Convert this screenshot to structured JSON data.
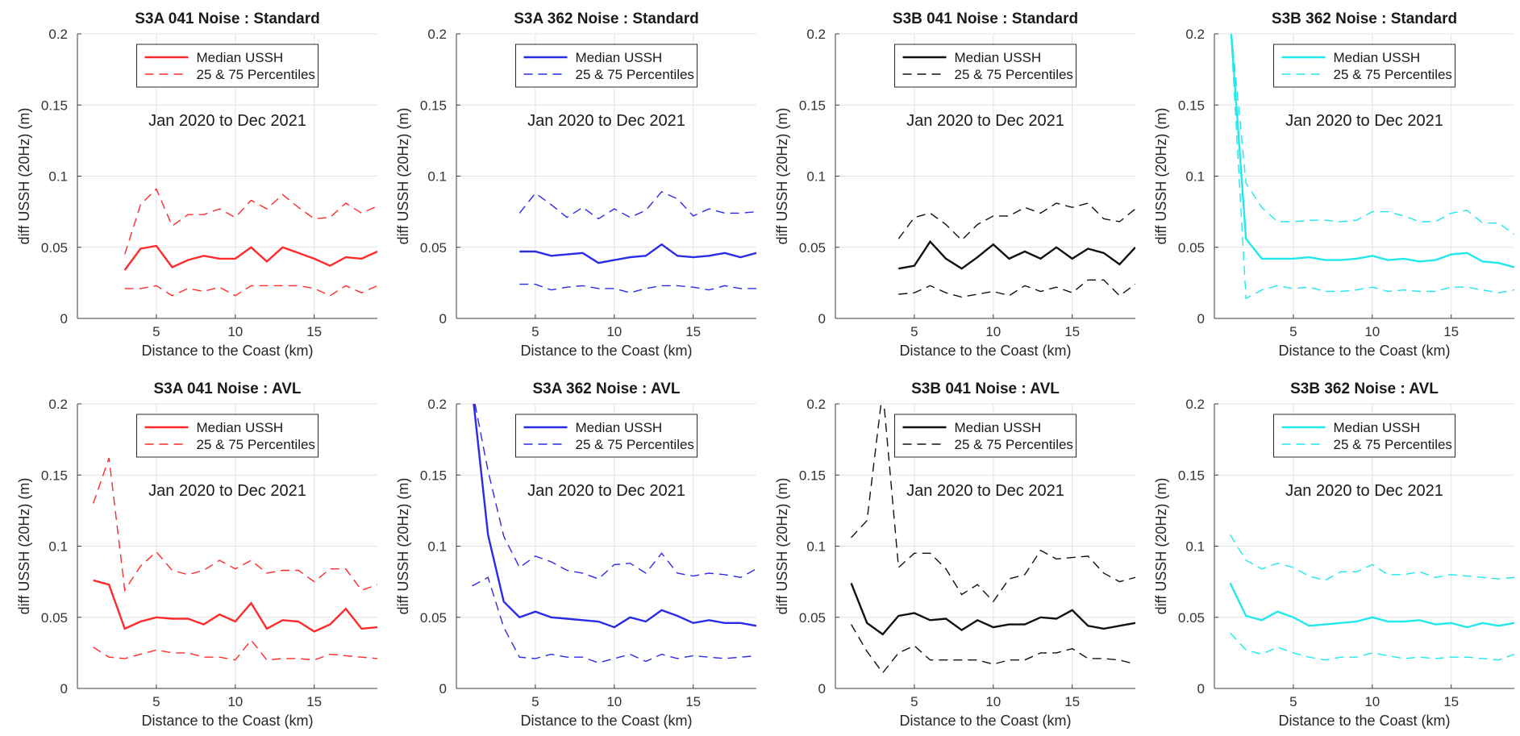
{
  "chart_data": [
    {
      "type": "line",
      "title": "S3A 041 Noise : Standard",
      "xlabel": "Distance to the Coast (km)",
      "ylabel": "diff USSH (20Hz)  (m)",
      "annotation": "Jan 2020 to Dec 2021",
      "xlim": [
        0,
        19
      ],
      "ylim": [
        0,
        0.2
      ],
      "xticks": [
        5,
        10,
        15
      ],
      "yticks": [
        0,
        0.05,
        0.1,
        0.15,
        0.2
      ],
      "ytick_labels": [
        "0",
        "0.05",
        "0.1",
        "0.15",
        "0.2"
      ],
      "grid": true,
      "legend_position": "top-center",
      "color": "#ff2a2a",
      "x": [
        3,
        4,
        5,
        6,
        7,
        8,
        9,
        10,
        11,
        12,
        13,
        14,
        15,
        16,
        17,
        18,
        19
      ],
      "series": [
        {
          "name": "Median USSH",
          "style": "solid",
          "values": [
            0.034,
            0.049,
            0.051,
            0.036,
            0.041,
            0.044,
            0.042,
            0.042,
            0.05,
            0.04,
            0.05,
            0.046,
            0.042,
            0.037,
            0.043,
            0.042,
            0.047
          ]
        },
        {
          "name": "25 & 75 Percentiles",
          "style": "dashed",
          "values": [
            0.045,
            0.08,
            0.091,
            0.065,
            0.073,
            0.073,
            0.077,
            0.071,
            0.083,
            0.077,
            0.087,
            0.078,
            0.07,
            0.071,
            0.081,
            0.074,
            0.079
          ]
        },
        {
          "style": "dashed",
          "values": [
            0.021,
            0.021,
            0.023,
            0.016,
            0.021,
            0.019,
            0.022,
            0.016,
            0.023,
            0.023,
            0.023,
            0.023,
            0.021,
            0.016,
            0.023,
            0.018,
            0.023
          ]
        }
      ]
    },
    {
      "type": "line",
      "title": "S3A 362 Noise : Standard",
      "xlabel": "Distance to the Coast (km)",
      "ylabel": "diff USSH (20Hz)  (m)",
      "annotation": "Jan 2020 to Dec 2021",
      "xlim": [
        0,
        19
      ],
      "ylim": [
        0,
        0.2
      ],
      "xticks": [
        5,
        10,
        15
      ],
      "yticks": [
        0,
        0.05,
        0.1,
        0.15,
        0.2
      ],
      "ytick_labels": [
        "0",
        "0.05",
        "0.1",
        "0.15",
        "0.2"
      ],
      "grid": true,
      "legend_position": "top-center",
      "color": "#2a2ae8",
      "x": [
        4,
        5,
        6,
        7,
        8,
        9,
        10,
        11,
        12,
        13,
        14,
        15,
        16,
        17,
        18,
        19
      ],
      "series": [
        {
          "name": "Median USSH",
          "style": "solid",
          "values": [
            0.047,
            0.047,
            0.044,
            0.045,
            0.046,
            0.039,
            0.041,
            0.043,
            0.044,
            0.052,
            0.044,
            0.043,
            0.044,
            0.046,
            0.043,
            0.046
          ]
        },
        {
          "name": "25 & 75 Percentiles",
          "style": "dashed",
          "values": [
            0.074,
            0.088,
            0.08,
            0.071,
            0.078,
            0.07,
            0.077,
            0.071,
            0.076,
            0.089,
            0.084,
            0.072,
            0.077,
            0.074,
            0.074,
            0.075
          ]
        },
        {
          "style": "dashed",
          "values": [
            0.024,
            0.024,
            0.02,
            0.022,
            0.023,
            0.021,
            0.021,
            0.018,
            0.021,
            0.023,
            0.023,
            0.022,
            0.02,
            0.023,
            0.021,
            0.021
          ]
        }
      ]
    },
    {
      "type": "line",
      "title": "S3B 041 Noise : Standard",
      "xlabel": "Distance to the Coast (km)",
      "ylabel": "diff USSH (20Hz)  (m)",
      "annotation": "Jan 2020 to Dec 2021",
      "xlim": [
        0,
        19
      ],
      "ylim": [
        0,
        0.2
      ],
      "xticks": [
        5,
        10,
        15
      ],
      "yticks": [
        0,
        0.05,
        0.1,
        0.15,
        0.2
      ],
      "ytick_labels": [
        "0",
        "0.05",
        "0.1",
        "0.15",
        "0.2"
      ],
      "grid": true,
      "legend_position": "top-center",
      "color": "#111111",
      "x": [
        4,
        5,
        6,
        7,
        8,
        9,
        10,
        11,
        12,
        13,
        14,
        15,
        16,
        17,
        18,
        19
      ],
      "series": [
        {
          "name": "Median USSH",
          "style": "solid",
          "values": [
            0.035,
            0.037,
            0.054,
            0.042,
            0.035,
            0.043,
            0.052,
            0.042,
            0.047,
            0.042,
            0.05,
            0.042,
            0.049,
            0.046,
            0.038,
            0.05
          ]
        },
        {
          "name": "25 & 75 Percentiles",
          "style": "dashed",
          "values": [
            0.056,
            0.071,
            0.074,
            0.066,
            0.055,
            0.066,
            0.072,
            0.072,
            0.078,
            0.074,
            0.081,
            0.078,
            0.081,
            0.07,
            0.068,
            0.077
          ]
        },
        {
          "style": "dashed",
          "values": [
            0.017,
            0.018,
            0.023,
            0.018,
            0.015,
            0.017,
            0.019,
            0.016,
            0.023,
            0.019,
            0.022,
            0.018,
            0.027,
            0.027,
            0.016,
            0.024
          ]
        }
      ]
    },
    {
      "type": "line",
      "title": "S3B 362 Noise : Standard",
      "xlabel": "Distance to the Coast (km)",
      "ylabel": "diff USSH (20Hz)  (m)",
      "annotation": "Jan 2020 to Dec 2021",
      "xlim": [
        0,
        19
      ],
      "ylim": [
        0,
        0.2
      ],
      "xticks": [
        5,
        10,
        15
      ],
      "yticks": [
        0,
        0.05,
        0.1,
        0.15,
        0.2
      ],
      "ytick_labels": [
        "0",
        "0.05",
        "0.1",
        "0.15",
        "0.2"
      ],
      "grid": true,
      "legend_position": "top-center",
      "color": "#21e8ec",
      "x": [
        1,
        2,
        3,
        4,
        5,
        6,
        7,
        8,
        9,
        10,
        11,
        12,
        13,
        14,
        15,
        16,
        17,
        18,
        19
      ],
      "series": [
        {
          "name": "Median USSH",
          "style": "solid",
          "values": [
            0.21,
            0.056,
            0.042,
            0.042,
            0.042,
            0.043,
            0.041,
            0.041,
            0.042,
            0.044,
            0.041,
            0.042,
            0.04,
            0.041,
            0.045,
            0.046,
            0.04,
            0.039,
            0.036
          ]
        },
        {
          "name": "25 & 75 Percentiles",
          "style": "dashed",
          "values": [
            0.21,
            0.095,
            0.078,
            0.068,
            0.068,
            0.069,
            0.069,
            0.068,
            0.069,
            0.075,
            0.075,
            0.072,
            0.068,
            0.068,
            0.074,
            0.076,
            0.067,
            0.067,
            0.059
          ]
        },
        {
          "style": "dashed",
          "values": [
            0.21,
            0.014,
            0.02,
            0.023,
            0.021,
            0.022,
            0.019,
            0.019,
            0.02,
            0.022,
            0.019,
            0.02,
            0.019,
            0.019,
            0.022,
            0.022,
            0.02,
            0.018,
            0.02
          ]
        }
      ]
    },
    {
      "type": "line",
      "title": "S3A 041 Noise : AVL",
      "xlabel": "Distance to the Coast (km)",
      "ylabel": "diff USSH (20Hz)  (m)",
      "annotation": "Jan 2020 to Dec 2021",
      "xlim": [
        0,
        19
      ],
      "ylim": [
        0,
        0.2
      ],
      "xticks": [
        5,
        10,
        15
      ],
      "yticks": [
        0,
        0.05,
        0.1,
        0.15,
        0.2
      ],
      "ytick_labels": [
        "0",
        "0.05",
        "0.1",
        "0.15",
        "0.2"
      ],
      "grid": true,
      "legend_position": "top-center",
      "color": "#ff2a2a",
      "x": [
        1,
        2,
        3,
        4,
        5,
        6,
        7,
        8,
        9,
        10,
        11,
        12,
        13,
        14,
        15,
        16,
        17,
        18,
        19
      ],
      "series": [
        {
          "name": "Median USSH",
          "style": "solid",
          "values": [
            0.076,
            0.073,
            0.042,
            0.047,
            0.05,
            0.049,
            0.049,
            0.045,
            0.052,
            0.047,
            0.06,
            0.042,
            0.048,
            0.047,
            0.04,
            0.045,
            0.056,
            0.042,
            0.043
          ]
        },
        {
          "name": "25 & 75 Percentiles",
          "style": "dashed",
          "values": [
            0.13,
            0.162,
            0.069,
            0.086,
            0.096,
            0.083,
            0.08,
            0.083,
            0.09,
            0.084,
            0.09,
            0.081,
            0.083,
            0.083,
            0.075,
            0.084,
            0.084,
            0.069,
            0.073
          ]
        },
        {
          "style": "dashed",
          "values": [
            0.029,
            0.022,
            0.021,
            0.024,
            0.027,
            0.025,
            0.025,
            0.022,
            0.022,
            0.02,
            0.034,
            0.02,
            0.021,
            0.021,
            0.02,
            0.024,
            0.023,
            0.022,
            0.021
          ]
        }
      ]
    },
    {
      "type": "line",
      "title": "S3A 362 Noise : AVL",
      "xlabel": "Distance to the Coast (km)",
      "ylabel": "diff USSH (20Hz)  (m)",
      "annotation": "Jan 2020 to Dec 2021",
      "xlim": [
        0,
        19
      ],
      "ylim": [
        0,
        0.2
      ],
      "xticks": [
        5,
        10,
        15
      ],
      "yticks": [
        0,
        0.05,
        0.1,
        0.15,
        0.2
      ],
      "ytick_labels": [
        "0",
        "0.05",
        "0.1",
        "0.15",
        "0.2"
      ],
      "grid": true,
      "legend_position": "top-center",
      "color": "#2a2ae8",
      "x": [
        1,
        2,
        3,
        4,
        5,
        6,
        7,
        8,
        9,
        10,
        11,
        12,
        13,
        14,
        15,
        16,
        17,
        18,
        19
      ],
      "series": [
        {
          "name": "Median USSH",
          "style": "solid",
          "values": [
            0.21,
            0.108,
            0.061,
            0.05,
            0.054,
            0.05,
            0.049,
            0.048,
            0.047,
            0.043,
            0.05,
            0.047,
            0.055,
            0.051,
            0.046,
            0.048,
            0.046,
            0.046,
            0.044
          ]
        },
        {
          "name": "25 & 75 Percentiles",
          "style": "dashed",
          "values": [
            0.072,
            0.078,
            0.043,
            0.022,
            0.021,
            0.024,
            0.022,
            0.022,
            0.018,
            0.021,
            0.024,
            0.019,
            0.024,
            0.021,
            0.023,
            0.022,
            0.021,
            0.022,
            0.023
          ]
        },
        {
          "style": "dashed",
          "values": [
            0.21,
            0.153,
            0.107,
            0.085,
            0.093,
            0.089,
            0.083,
            0.081,
            0.077,
            0.087,
            0.088,
            0.081,
            0.095,
            0.081,
            0.079,
            0.081,
            0.08,
            0.078,
            0.084
          ]
        }
      ]
    },
    {
      "type": "line",
      "title": "S3B 041 Noise : AVL",
      "xlabel": "Distance to the Coast (km)",
      "ylabel": "diff USSH (20Hz)  (m)",
      "annotation": "Jan 2020 to Dec 2021",
      "xlim": [
        0,
        19
      ],
      "ylim": [
        0,
        0.2
      ],
      "xticks": [
        5,
        10,
        15
      ],
      "yticks": [
        0,
        0.05,
        0.1,
        0.15,
        0.2
      ],
      "ytick_labels": [
        "0",
        "0.05",
        "0.1",
        "0.15",
        "0.2"
      ],
      "grid": true,
      "legend_position": "top-center",
      "color": "#111111",
      "x": [
        1,
        2,
        3,
        4,
        5,
        6,
        7,
        8,
        9,
        10,
        11,
        12,
        13,
        14,
        15,
        16,
        17,
        18,
        19
      ],
      "series": [
        {
          "name": "Median USSH",
          "style": "solid",
          "values": [
            0.074,
            0.046,
            0.038,
            0.051,
            0.053,
            0.048,
            0.049,
            0.041,
            0.048,
            0.043,
            0.045,
            0.045,
            0.05,
            0.049,
            0.055,
            0.044,
            0.042,
            0.044,
            0.046
          ]
        },
        {
          "name": "25 & 75 Percentiles",
          "style": "dashed",
          "values": [
            0.106,
            0.118,
            0.21,
            0.085,
            0.095,
            0.095,
            0.084,
            0.066,
            0.073,
            0.061,
            0.077,
            0.08,
            0.097,
            0.091,
            0.092,
            0.093,
            0.081,
            0.075,
            0.078
          ]
        },
        {
          "style": "dashed",
          "values": [
            0.045,
            0.026,
            0.011,
            0.025,
            0.03,
            0.02,
            0.02,
            0.02,
            0.02,
            0.017,
            0.02,
            0.02,
            0.025,
            0.025,
            0.028,
            0.021,
            0.021,
            0.02,
            0.017
          ]
        }
      ]
    },
    {
      "type": "line",
      "title": "S3B 362 Noise : AVL",
      "xlabel": "Distance to the Coast (km)",
      "ylabel": "diff USSH (20Hz)  (m)",
      "annotation": "Jan 2020 to Dec 2021",
      "xlim": [
        0,
        19
      ],
      "ylim": [
        0,
        0.2
      ],
      "xticks": [
        5,
        10,
        15
      ],
      "yticks": [
        0,
        0.05,
        0.1,
        0.15,
        0.2
      ],
      "ytick_labels": [
        "0",
        "0.05",
        "0.1",
        "0.15",
        "0.2"
      ],
      "grid": true,
      "legend_position": "top-center",
      "color": "#21e8ec",
      "x": [
        1,
        2,
        3,
        4,
        5,
        6,
        7,
        8,
        9,
        10,
        11,
        12,
        13,
        14,
        15,
        16,
        17,
        18,
        19
      ],
      "series": [
        {
          "name": "Median USSH",
          "style": "solid",
          "values": [
            0.074,
            0.051,
            0.048,
            0.054,
            0.05,
            0.044,
            0.045,
            0.046,
            0.047,
            0.05,
            0.047,
            0.047,
            0.048,
            0.045,
            0.046,
            0.043,
            0.046,
            0.044,
            0.046
          ]
        },
        {
          "name": "25 & 75 Percentiles",
          "style": "dashed",
          "values": [
            0.108,
            0.09,
            0.084,
            0.088,
            0.085,
            0.079,
            0.076,
            0.082,
            0.082,
            0.087,
            0.08,
            0.08,
            0.082,
            0.078,
            0.08,
            0.079,
            0.078,
            0.077,
            0.078
          ]
        },
        {
          "style": "dashed",
          "values": [
            0.039,
            0.027,
            0.024,
            0.029,
            0.025,
            0.022,
            0.02,
            0.022,
            0.022,
            0.025,
            0.023,
            0.021,
            0.022,
            0.021,
            0.022,
            0.022,
            0.021,
            0.02,
            0.024
          ]
        }
      ]
    }
  ]
}
